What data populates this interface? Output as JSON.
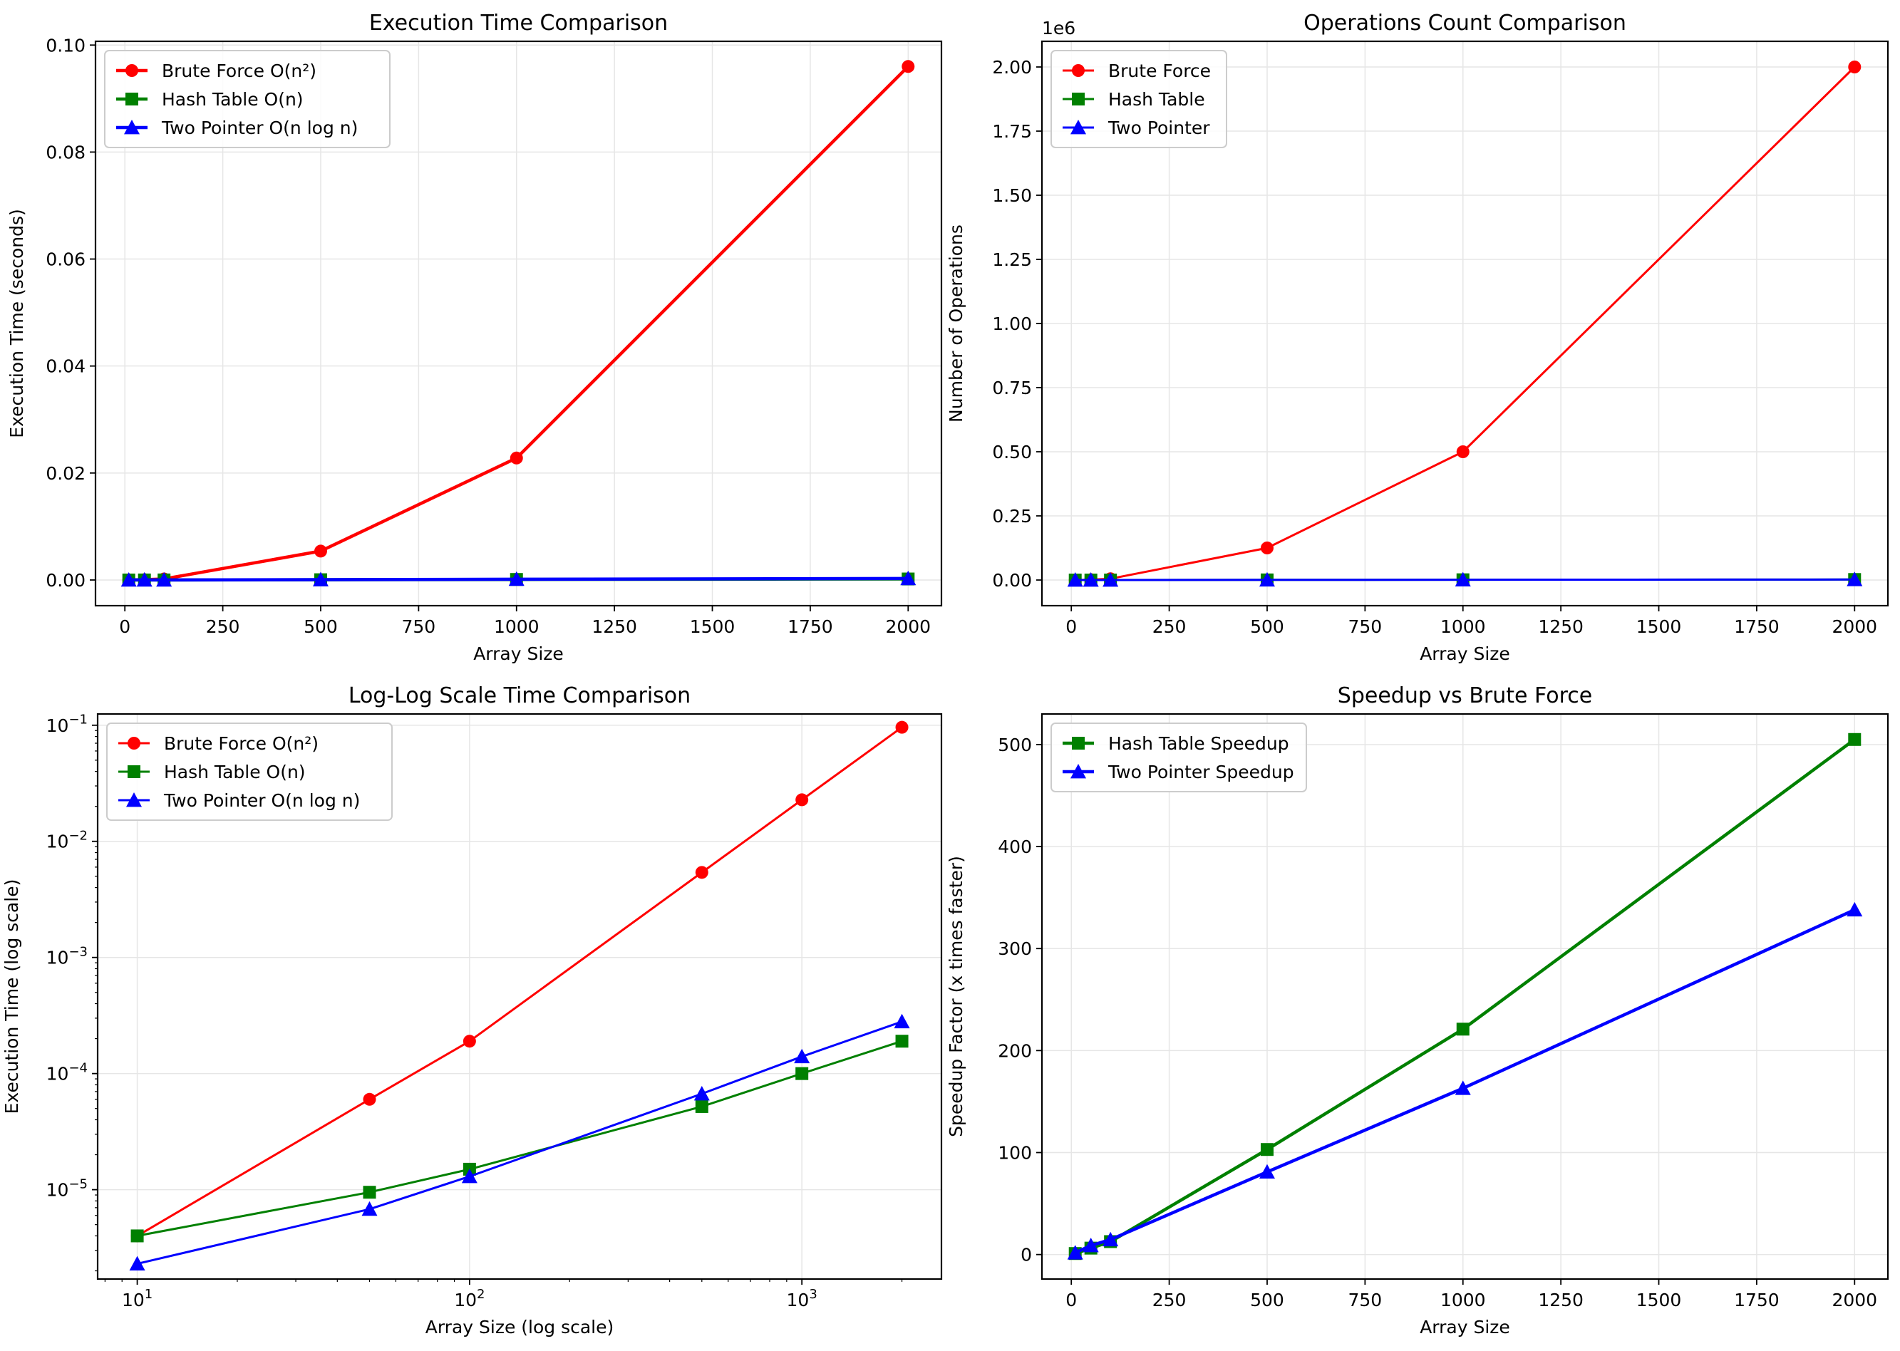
{
  "figure": {
    "colors": {
      "brute": "#ff0000",
      "hash": "#008000",
      "two": "#0000ff",
      "grid": "#e6e6e6",
      "legend_border": "#cccccc"
    }
  },
  "chart_data": [
    {
      "id": "exec-time",
      "type": "line",
      "title": "Execution Time Comparison",
      "xlabel": "Array Size",
      "ylabel": "Execution Time (seconds)",
      "xscale": "linear",
      "yscale": "linear",
      "xlim": [
        -75,
        2085
      ],
      "ylim": [
        -0.0048,
        0.1007
      ],
      "xticks": [
        0,
        250,
        500,
        750,
        1000,
        1250,
        1500,
        1750,
        2000
      ],
      "xtick_labels": [
        "0",
        "250",
        "500",
        "750",
        "1000",
        "1250",
        "1500",
        "1750",
        "2000"
      ],
      "yticks": [
        0.0,
        0.02,
        0.04,
        0.06,
        0.08,
        0.1
      ],
      "ytick_labels": [
        "0.00",
        "0.02",
        "0.04",
        "0.06",
        "0.08",
        "0.10"
      ],
      "offset_label": "",
      "grid": true,
      "legend_position": "upper-left",
      "x": [
        10,
        50,
        100,
        500,
        1000,
        2000
      ],
      "series": [
        {
          "name": "Brute Force O(n²)",
          "color": "brute",
          "marker": "circle",
          "linewidth": "thick",
          "values": [
            4e-06,
            6e-05,
            0.00019,
            0.0054,
            0.0228,
            0.096
          ]
        },
        {
          "name": "Hash Table O(n)",
          "color": "hash",
          "marker": "square",
          "linewidth": "thick",
          "values": [
            4e-06,
            9.5e-06,
            1.5e-05,
            5.2e-05,
            0.0001,
            0.00019
          ]
        },
        {
          "name": "Two Pointer O(n log n)",
          "color": "two",
          "marker": "triangle",
          "linewidth": "thick",
          "values": [
            2.3e-06,
            6.8e-06,
            1.3e-05,
            6.7e-05,
            0.00014,
            0.00028
          ]
        }
      ]
    },
    {
      "id": "ops-count",
      "type": "line",
      "title": "Operations Count Comparison",
      "xlabel": "Array Size",
      "ylabel": "Number of Operations",
      "xscale": "linear",
      "yscale": "linear",
      "xlim": [
        -75,
        2085
      ],
      "ylim": [
        -0.1,
        2.1
      ],
      "xticks": [
        0,
        250,
        500,
        750,
        1000,
        1250,
        1500,
        1750,
        2000
      ],
      "xtick_labels": [
        "0",
        "250",
        "500",
        "750",
        "1000",
        "1250",
        "1500",
        "1750",
        "2000"
      ],
      "yticks": [
        0.0,
        0.25,
        0.5,
        0.75,
        1.0,
        1.25,
        1.5,
        1.75,
        2.0
      ],
      "ytick_labels": [
        "0.00",
        "0.25",
        "0.50",
        "0.75",
        "1.00",
        "1.25",
        "1.50",
        "1.75",
        "2.00"
      ],
      "offset_label": "1e6",
      "grid": true,
      "legend_position": "upper-left",
      "x": [
        10,
        50,
        100,
        500,
        1000,
        2000
      ],
      "series": [
        {
          "name": "Brute Force",
          "color": "brute",
          "marker": "circle",
          "linewidth": "normal",
          "values": [
            5e-05,
            0.00125,
            0.005,
            0.125,
            0.5,
            2.0
          ]
        },
        {
          "name": "Hash Table",
          "color": "hash",
          "marker": "square",
          "linewidth": "normal",
          "values": [
            1e-05,
            5e-05,
            0.0001,
            0.0005,
            0.001,
            0.002
          ]
        },
        {
          "name": "Two Pointer",
          "color": "two",
          "marker": "triangle",
          "linewidth": "normal",
          "values": [
            1e-05,
            5e-05,
            0.0001,
            0.0005,
            0.001,
            0.002
          ]
        }
      ]
    },
    {
      "id": "loglog",
      "type": "line",
      "title": "Log-Log Scale Time Comparison",
      "xlabel": "Array Size (log scale)",
      "ylabel": "Execution Time (log scale)",
      "xscale": "log",
      "yscale": "log",
      "xlim": [
        7.6,
        2630
      ],
      "ylim": [
        1.7e-06,
        0.125
      ],
      "xticks": [
        10,
        100,
        1000
      ],
      "xtick_labels": [
        [
          "10",
          "1"
        ],
        [
          "10",
          "2"
        ],
        [
          "10",
          "3"
        ]
      ],
      "yticks": [
        1e-05,
        0.0001,
        0.001,
        0.01,
        0.1
      ],
      "ytick_labels": [
        [
          "10",
          "−5"
        ],
        [
          "10",
          "−4"
        ],
        [
          "10",
          "−3"
        ],
        [
          "10",
          "−2"
        ],
        [
          "10",
          "−1"
        ]
      ],
      "offset_label": "",
      "grid": true,
      "legend_position": "upper-left",
      "x": [
        10,
        50,
        100,
        500,
        1000,
        2000
      ],
      "series": [
        {
          "name": "Brute Force O(n²)",
          "color": "brute",
          "marker": "circle",
          "linewidth": "normal",
          "values": [
            4e-06,
            6e-05,
            0.00019,
            0.0054,
            0.0228,
            0.096
          ]
        },
        {
          "name": "Hash Table O(n)",
          "color": "hash",
          "marker": "square",
          "linewidth": "normal",
          "values": [
            4e-06,
            9.5e-06,
            1.5e-05,
            5.2e-05,
            0.0001,
            0.00019
          ]
        },
        {
          "name": "Two Pointer O(n log n)",
          "color": "two",
          "marker": "triangle",
          "linewidth": "normal",
          "values": [
            2.3e-06,
            6.8e-06,
            1.3e-05,
            6.7e-05,
            0.00014,
            0.00028
          ]
        }
      ]
    },
    {
      "id": "speedup",
      "type": "line",
      "title": "Speedup vs Brute Force",
      "xlabel": "Array Size",
      "ylabel": "Speedup Factor (x times faster)",
      "xscale": "linear",
      "yscale": "linear",
      "xlim": [
        -75,
        2085
      ],
      "ylim": [
        -24,
        530
      ],
      "xticks": [
        0,
        250,
        500,
        750,
        1000,
        1250,
        1500,
        1750,
        2000
      ],
      "xtick_labels": [
        "0",
        "250",
        "500",
        "750",
        "1000",
        "1250",
        "1500",
        "1750",
        "2000"
      ],
      "yticks": [
        0,
        100,
        200,
        300,
        400,
        500
      ],
      "ytick_labels": [
        "0",
        "100",
        "200",
        "300",
        "400",
        "500"
      ],
      "offset_label": "",
      "grid": true,
      "legend_position": "upper-left",
      "x": [
        10,
        50,
        100,
        500,
        1000,
        2000
      ],
      "series": [
        {
          "name": "Hash Table Speedup",
          "color": "hash",
          "marker": "square",
          "linewidth": "thick",
          "values": [
            1.0,
            6.3,
            12.7,
            103,
            221,
            505
          ]
        },
        {
          "name": "Two Pointer Speedup",
          "color": "two",
          "marker": "triangle",
          "linewidth": "thick",
          "values": [
            1.7,
            8.8,
            14.6,
            81,
            163,
            338
          ]
        }
      ]
    }
  ]
}
